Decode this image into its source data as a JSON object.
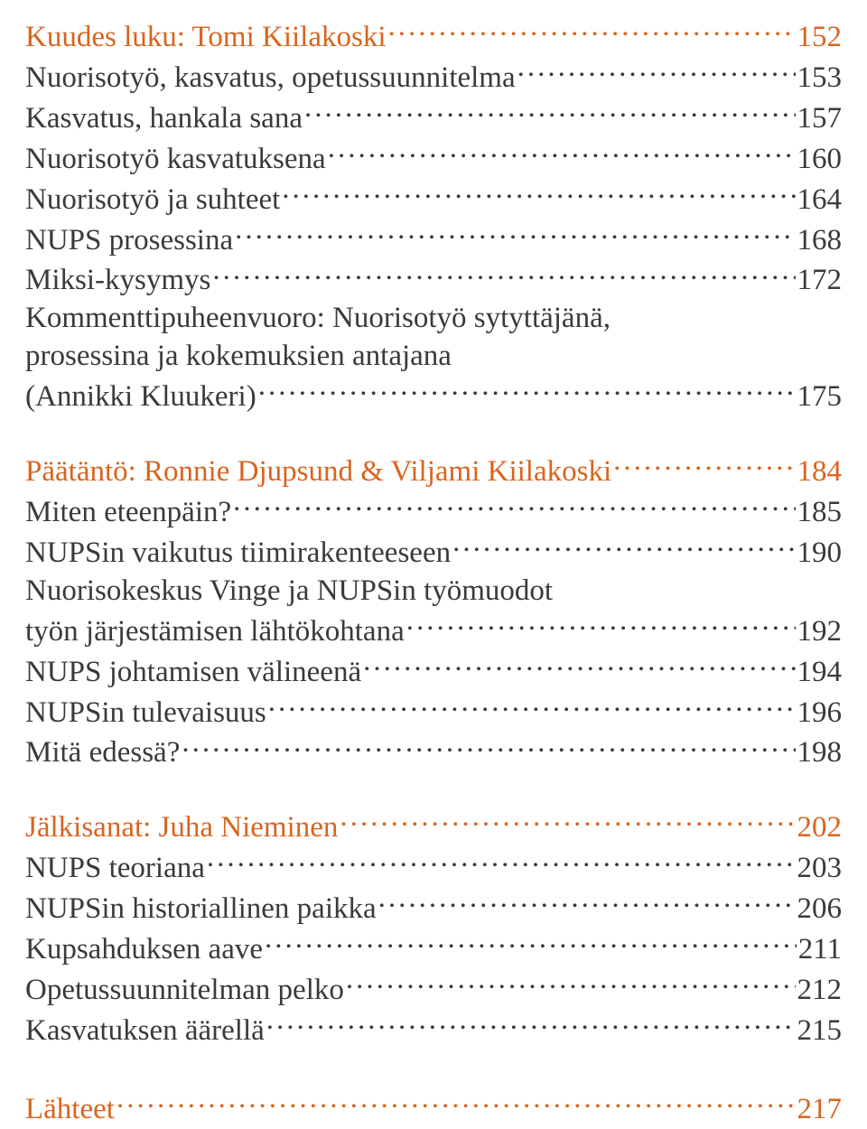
{
  "colors": {
    "body_text": "#3a3a3a",
    "accent": "#d9641f",
    "background": "#ffffff"
  },
  "typography": {
    "font_family": "Georgia",
    "font_size_pt": 25,
    "line_height": 1.27
  },
  "sections": [
    {
      "heading": {
        "text": "Kuudes luku: Tomi Kiilakoski",
        "page": "152",
        "accent": true
      },
      "items": [
        {
          "text": "Nuorisotyö, kasvatus, opetussuunnitelma",
          "page": "153"
        },
        {
          "text": "Kasvatus, hankala sana",
          "page": "157"
        },
        {
          "text": "Nuorisotyö kasvatuksena",
          "page": "160"
        },
        {
          "text": "Nuorisotyö ja suhteet",
          "page": "164"
        },
        {
          "text": "NUPS prosessina",
          "page": "168"
        },
        {
          "text": "Miksi-kysymys",
          "page": "172"
        },
        {
          "text_lines": [
            "Kommenttipuheenvuoro: Nuorisotyö sytyttäjänä,",
            "prosessina ja kokemuksien antajana"
          ],
          "tail": "(Annikki Kluukeri)",
          "page": "175"
        }
      ]
    },
    {
      "heading": {
        "text": "Päätäntö: Ronnie Djupsund & Viljami Kiilakoski",
        "page": "184",
        "accent": true
      },
      "items": [
        {
          "text": "Miten eteenpäin?",
          "page": "185"
        },
        {
          "text": "NUPSin vaikutus tiimirakenteeseen",
          "page": "190"
        },
        {
          "text_lines": [
            "Nuorisokeskus Vinge ja NUPSin työmuodot"
          ],
          "tail": "työn järjestämisen lähtökohtana",
          "page": "192"
        },
        {
          "text": "NUPS johtamisen välineenä",
          "page": "194"
        },
        {
          "text": "NUPSin tulevaisuus",
          "page": "196"
        },
        {
          "text": "Mitä edessä?",
          "page": "198"
        }
      ]
    },
    {
      "heading": {
        "text": "Jälkisanat: Juha Nieminen",
        "page": "202",
        "accent": true
      },
      "items": [
        {
          "text": "NUPS teoriana",
          "page": "203"
        },
        {
          "text": "NUPSin historiallinen paikka",
          "page": "206"
        },
        {
          "text": "Kupsahduksen aave",
          "page": "211"
        },
        {
          "text": "Opetussuunnitelman pelko",
          "page": "212"
        },
        {
          "text": "Kasvatuksen äärellä",
          "page": "215"
        }
      ]
    },
    {
      "heading": {
        "text": "Lähteet",
        "page": "217",
        "accent": true
      },
      "items": []
    }
  ]
}
